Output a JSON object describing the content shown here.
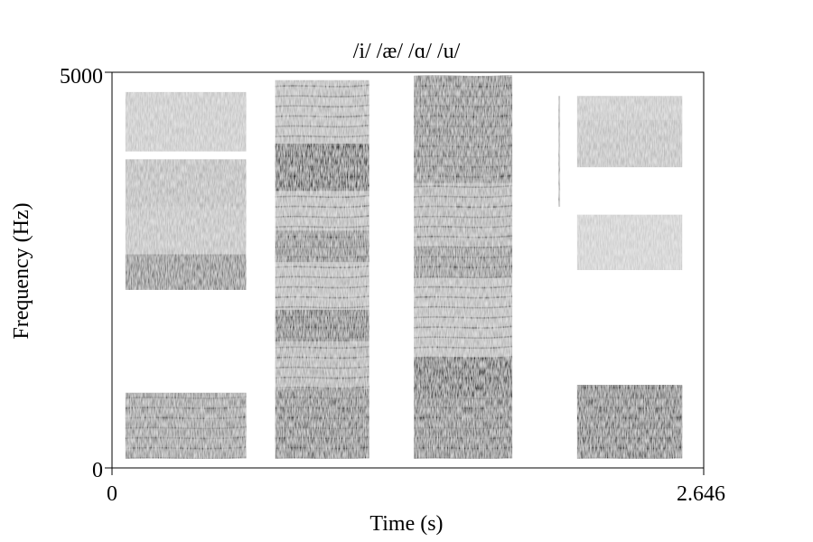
{
  "chart_data": {
    "type": "heatmap",
    "subtype": "spectrogram",
    "title": "/i/ /æ/ /ɑ/ /u/",
    "xlabel": "Time (s)",
    "ylabel": "Frequency (Hz)",
    "xlim": [
      0,
      2.646
    ],
    "ylim": [
      0,
      5000
    ],
    "x_tick_labels": [
      "0",
      "2.646"
    ],
    "y_tick_labels": [
      "0",
      "5000"
    ],
    "colormap": "grayscale (darker = more energy)",
    "grid": false,
    "segments": [
      {
        "vowel": "/i/",
        "start": 0.06,
        "end": 0.6,
        "harmonic_band": [
          120,
          950
        ],
        "energy_bands": [
          {
            "low": 120,
            "high": 950,
            "level": 0.65
          },
          {
            "low": 2250,
            "high": 2700,
            "level": 0.75
          },
          {
            "low": 2700,
            "high": 3300,
            "level": 0.4
          },
          {
            "low": 3300,
            "high": 3900,
            "level": 0.45
          },
          {
            "low": 4000,
            "high": 4750,
            "level": 0.35
          }
        ]
      },
      {
        "vowel": "/æ/",
        "start": 0.73,
        "end": 1.15,
        "harmonic_band": [
          120,
          4900
        ],
        "energy_bands": [
          {
            "low": 120,
            "high": 1000,
            "level": 0.8
          },
          {
            "low": 1000,
            "high": 1600,
            "level": 0.5
          },
          {
            "low": 1600,
            "high": 2000,
            "level": 0.85
          },
          {
            "low": 2000,
            "high": 2600,
            "level": 0.45
          },
          {
            "low": 2600,
            "high": 3000,
            "level": 0.75
          },
          {
            "low": 3000,
            "high": 3500,
            "level": 0.45
          },
          {
            "low": 3500,
            "high": 4100,
            "level": 0.95
          },
          {
            "low": 4100,
            "high": 4900,
            "level": 0.45
          }
        ]
      },
      {
        "vowel": "/ɑ/",
        "start": 1.35,
        "end": 1.79,
        "harmonic_band": [
          120,
          4950
        ],
        "energy_bands": [
          {
            "low": 120,
            "high": 900,
            "level": 0.8
          },
          {
            "low": 900,
            "high": 1400,
            "level": 0.95
          },
          {
            "low": 1400,
            "high": 2400,
            "level": 0.45
          },
          {
            "low": 2400,
            "high": 2800,
            "level": 0.7
          },
          {
            "low": 2800,
            "high": 3600,
            "level": 0.5
          },
          {
            "low": 3600,
            "high": 4950,
            "level": 0.75
          }
        ]
      },
      {
        "vowel": "/u/",
        "start": 2.08,
        "end": 2.55,
        "harmonic_band": [
          120,
          1050
        ],
        "energy_bands": [
          {
            "low": 120,
            "high": 1050,
            "level": 0.85
          },
          {
            "low": 2500,
            "high": 3200,
            "level": 0.3
          },
          {
            "low": 3800,
            "high": 4400,
            "level": 0.4
          },
          {
            "low": 4400,
            "high": 4700,
            "level": 0.35
          }
        ]
      }
    ],
    "transient": {
      "time": 2.0,
      "low": 3300,
      "high": 4700
    }
  }
}
